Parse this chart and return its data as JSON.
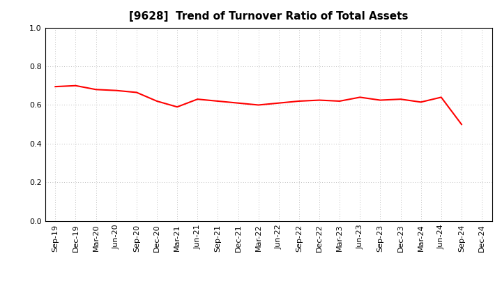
{
  "title": "[9628]  Trend of Turnover Ratio of Total Assets",
  "x_labels": [
    "Sep-19",
    "Dec-19",
    "Mar-20",
    "Jun-20",
    "Sep-20",
    "Dec-20",
    "Mar-21",
    "Jun-21",
    "Sep-21",
    "Dec-21",
    "Mar-22",
    "Jun-22",
    "Sep-22",
    "Dec-22",
    "Mar-23",
    "Jun-23",
    "Sep-23",
    "Dec-23",
    "Mar-24",
    "Jun-24",
    "Sep-24",
    "Dec-24"
  ],
  "y_values": [
    0.695,
    0.7,
    0.68,
    0.675,
    0.665,
    0.62,
    0.59,
    0.63,
    0.62,
    0.61,
    0.6,
    0.61,
    0.62,
    0.625,
    0.62,
    0.64,
    0.625,
    0.63,
    0.615,
    0.64,
    0.5,
    null
  ],
  "line_color": "#FF0000",
  "line_width": 1.5,
  "ylim": [
    0.0,
    1.0
  ],
  "yticks": [
    0.0,
    0.2,
    0.4,
    0.6,
    0.8,
    1.0
  ],
  "background_color": "#FFFFFF",
  "grid_color": "#AAAAAA",
  "title_fontsize": 11,
  "tick_fontsize": 8
}
